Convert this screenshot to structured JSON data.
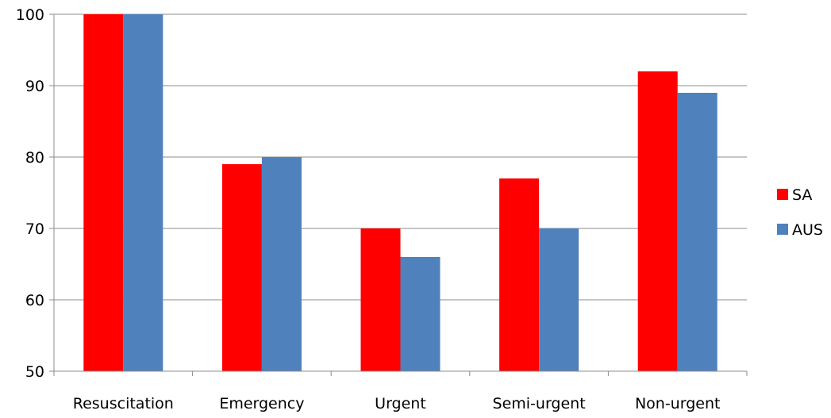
{
  "chart_data": {
    "type": "bar",
    "categories": [
      "Resuscitation",
      "Emergency",
      "Urgent",
      "Semi-urgent",
      "Non-urgent"
    ],
    "series": [
      {
        "name": "SA",
        "color": "#ff0000",
        "values": [
          100,
          79,
          70,
          77,
          92
        ]
      },
      {
        "name": "AUS",
        "color": "#4f81bd",
        "values": [
          100,
          80,
          66,
          70,
          89
        ]
      }
    ],
    "ylim": [
      50,
      100
    ],
    "yticks": [
      50,
      60,
      70,
      80,
      90,
      100
    ],
    "grid": true,
    "legend_position": "right"
  }
}
